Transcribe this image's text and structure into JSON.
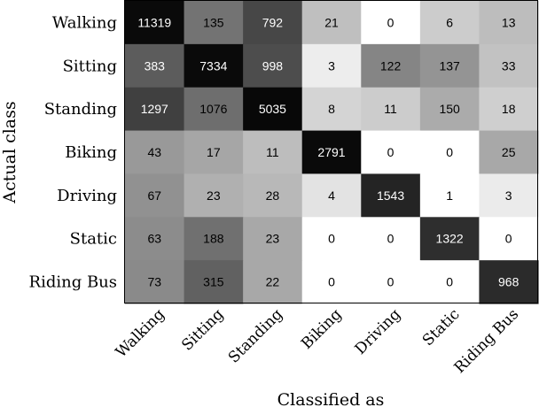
{
  "chart_data": {
    "type": "heatmap",
    "xlabel": "Classified as",
    "ylabel": "Actual class",
    "rows": [
      "Walking",
      "Sitting",
      "Standing",
      "Biking",
      "Driving",
      "Static",
      "Riding Bus"
    ],
    "columns": [
      "Walking",
      "Sitting",
      "Standing",
      "Biking",
      "Driving",
      "Static",
      "Riding Bus"
    ],
    "values": [
      [
        11319,
        135,
        792,
        21,
        0,
        6,
        13
      ],
      [
        383,
        7334,
        998,
        3,
        122,
        137,
        33
      ],
      [
        1297,
        1076,
        5035,
        8,
        11,
        150,
        18
      ],
      [
        43,
        17,
        11,
        2791,
        0,
        0,
        25
      ],
      [
        67,
        23,
        28,
        4,
        1543,
        1,
        3
      ],
      [
        63,
        188,
        23,
        0,
        0,
        1322,
        0
      ],
      [
        73,
        315,
        22,
        0,
        0,
        0,
        968
      ]
    ],
    "shading": [
      [
        0.96,
        0.55,
        0.72,
        0.25,
        0.0,
        0.2,
        0.26
      ],
      [
        0.64,
        0.96,
        0.7,
        0.07,
        0.48,
        0.42,
        0.24
      ],
      [
        0.75,
        0.57,
        0.97,
        0.17,
        0.2,
        0.33,
        0.19
      ],
      [
        0.4,
        0.35,
        0.26,
        0.96,
        0.0,
        0.0,
        0.34
      ],
      [
        0.43,
        0.31,
        0.28,
        0.11,
        0.86,
        0.0,
        0.08
      ],
      [
        0.45,
        0.56,
        0.34,
        0.0,
        0.0,
        0.82,
        0.0
      ],
      [
        0.46,
        0.62,
        0.34,
        0.0,
        0.0,
        0.0,
        0.83
      ]
    ],
    "colormap": "grayscale, darker = larger share of the actual class",
    "grid": false,
    "legend": "none"
  }
}
